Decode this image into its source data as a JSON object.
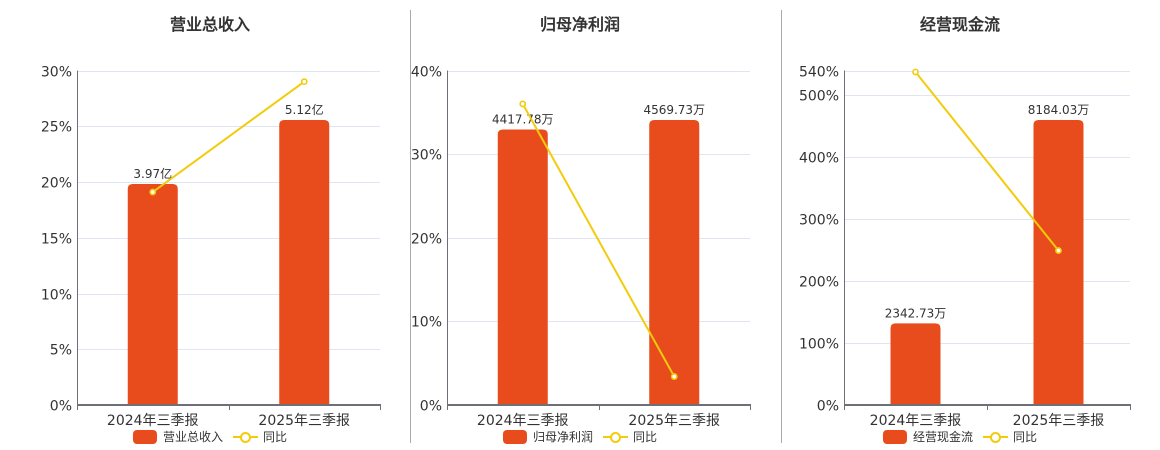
{
  "colors": {
    "bar": "#E84C1C",
    "line": "#F2CC0C",
    "grid": "#E0E6F1",
    "axis": "#6E7079",
    "divider": "#AAAAAA"
  },
  "chart_data": [
    {
      "type": "bar",
      "title": "营业总收入",
      "categories": [
        "2024年三季报",
        "2025年三季报"
      ],
      "series": [
        {
          "name": "营业总收入",
          "type": "bar",
          "values": [
            3.97,
            5.12
          ],
          "unit": "亿",
          "data_labels": [
            "3.97亿",
            "5.12亿"
          ]
        },
        {
          "name": "同比",
          "type": "line",
          "values": [
            19.1,
            29.0
          ],
          "unit": "%"
        }
      ],
      "y_axis": {
        "range": [
          0,
          30
        ],
        "ticks": [
          0,
          5,
          10,
          15,
          20,
          25,
          30
        ],
        "tick_labels": [
          "0%",
          "5%",
          "10%",
          "15%",
          "20%",
          "25%",
          "30%"
        ]
      },
      "grid": true,
      "legend_position": "bottom",
      "legend": [
        "营业总收入",
        "同比"
      ]
    },
    {
      "type": "bar",
      "title": "归母净利润",
      "categories": [
        "2024年三季报",
        "2025年三季报"
      ],
      "series": [
        {
          "name": "归母净利润",
          "type": "bar",
          "values": [
            4417.78,
            4569.73
          ],
          "unit": "万",
          "data_labels": [
            "4417.78万",
            "4569.73万"
          ]
        },
        {
          "name": "同比",
          "type": "line",
          "values": [
            36.0,
            3.4
          ],
          "unit": "%"
        }
      ],
      "y_axis": {
        "range": [
          0,
          40
        ],
        "ticks": [
          0,
          10,
          20,
          30,
          40
        ],
        "tick_labels": [
          "0%",
          "10%",
          "20%",
          "30%",
          "40%"
        ]
      },
      "grid": true,
      "legend_position": "bottom",
      "legend": [
        "归母净利润",
        "同比"
      ]
    },
    {
      "type": "bar",
      "title": "经营现金流",
      "categories": [
        "2024年三季报",
        "2025年三季报"
      ],
      "series": [
        {
          "name": "经营现金流",
          "type": "bar",
          "values": [
            2342.73,
            8184.03
          ],
          "unit": "万",
          "data_labels": [
            "2342.73万",
            "8184.03万"
          ]
        },
        {
          "name": "同比",
          "type": "line",
          "values": [
            537.6,
            249.3
          ],
          "unit": "%"
        }
      ],
      "y_axis": {
        "range": [
          0,
          540
        ],
        "ticks": [
          0,
          100,
          200,
          300,
          400,
          500,
          540
        ],
        "tick_labels": [
          "0%",
          "100%",
          "200%",
          "300%",
          "400%",
          "500%",
          "540%"
        ]
      },
      "grid": true,
      "legend_position": "bottom",
      "legend": [
        "经营现金流",
        "同比"
      ]
    }
  ]
}
